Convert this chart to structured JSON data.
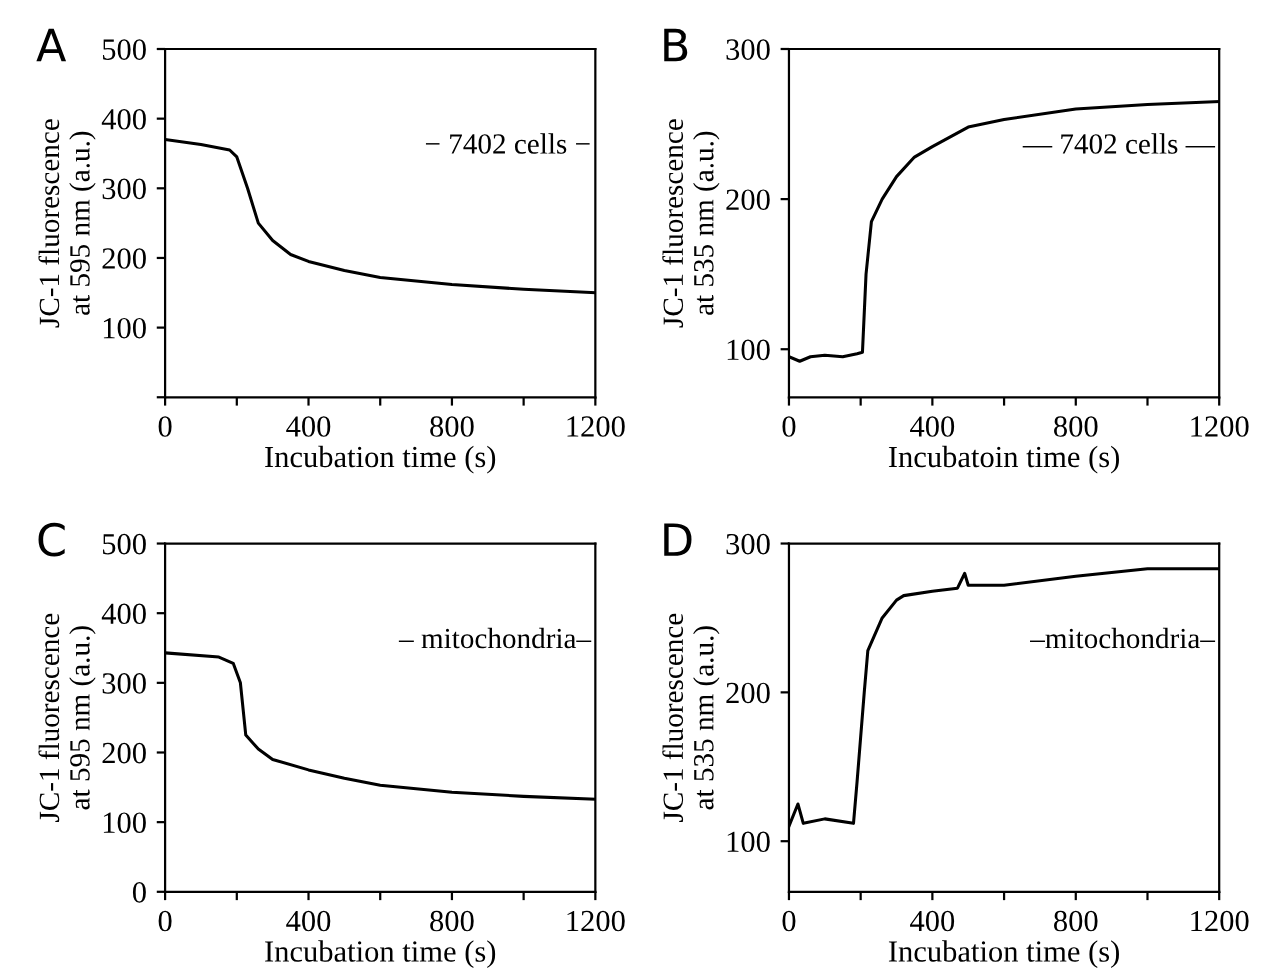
{
  "chart_data": [
    {
      "type": "line",
      "title": "A",
      "xlabel": "Incubation time (s)",
      "ylabel": "JC-1 fluorescence\nat 595 nm (a.u.)",
      "annotations": [
        {
          "text": "− 7402 cells −"
        }
      ],
      "x": [
        0,
        100,
        180,
        200,
        230,
        260,
        300,
        350,
        400,
        500,
        600,
        800,
        1000,
        1200
      ],
      "series": [
        {
          "color": "#000000",
          "values": [
            370,
            363,
            355,
            345,
            300,
            250,
            225,
            205,
            195,
            182,
            172,
            162,
            155,
            150
          ]
        }
      ],
      "xlim": [
        0,
        1200
      ],
      "xticks": [
        0,
        {
          "value": 200,
          "label": null
        },
        400,
        {
          "value": 600,
          "label": null
        },
        800,
        {
          "value": 1000,
          "label": null
        },
        1200
      ],
      "ylim": [
        0,
        500
      ],
      "yticks": [
        {
          "value": 0,
          "label": null
        },
        100,
        200,
        300,
        400,
        500
      ],
      "grid": false,
      "legend": false
    },
    {
      "type": "line",
      "title": "B",
      "xlabel": "Incubatoin time (s)",
      "ylabel": "JC-1 fluorescence\nat 535 nm (a.u.)",
      "annotations": [
        {
          "text": "— 7402 cells —"
        }
      ],
      "x": [
        0,
        30,
        60,
        100,
        150,
        190,
        205,
        215,
        230,
        260,
        300,
        350,
        400,
        500,
        600,
        800,
        1000,
        1200
      ],
      "series": [
        {
          "color": "#000000",
          "values": [
            95,
            92,
            95,
            96,
            95,
            97,
            98,
            150,
            185,
            200,
            215,
            228,
            235,
            248,
            253,
            260,
            263,
            265
          ]
        }
      ],
      "xlim": [
        0,
        1200
      ],
      "xticks": [
        0,
        {
          "value": 200,
          "label": null
        },
        400,
        {
          "value": 600,
          "label": null
        },
        800,
        {
          "value": 1000,
          "label": null
        },
        1200
      ],
      "ylim": [
        68,
        300
      ],
      "yticks": [
        100,
        200,
        300
      ],
      "grid": false,
      "legend": false
    },
    {
      "type": "line",
      "title": "C",
      "xlabel": "Incubation time (s)",
      "ylabel": "JC-1 fluorescence\nat 595 nm (a.u.)",
      "annotations": [
        {
          "text": "– mitochondria–"
        }
      ],
      "x": [
        0,
        150,
        190,
        210,
        225,
        260,
        300,
        400,
        500,
        600,
        800,
        1000,
        1200
      ],
      "series": [
        {
          "color": "#000000",
          "values": [
            343,
            337,
            328,
            300,
            225,
            205,
            190,
            175,
            163,
            153,
            143,
            137,
            133
          ]
        }
      ],
      "xlim": [
        0,
        1200
      ],
      "xticks": [
        0,
        {
          "value": 200,
          "label": null
        },
        400,
        {
          "value": 600,
          "label": null
        },
        800,
        {
          "value": 1000,
          "label": null
        },
        1200
      ],
      "ylim": [
        0,
        500
      ],
      "yticks": [
        0,
        100,
        200,
        300,
        400,
        500
      ],
      "grid": false,
      "legend": false
    },
    {
      "type": "line",
      "title": "D",
      "xlabel": "Incubation time (s)",
      "ylabel": "JC-1 fluorescence\nat 535 nm (a.u.)",
      "annotations": [
        {
          "text": "–mitochondria–"
        }
      ],
      "x": [
        0,
        25,
        40,
        100,
        180,
        190,
        210,
        220,
        260,
        300,
        320,
        400,
        470,
        490,
        500,
        600,
        800,
        1000,
        1200
      ],
      "series": [
        {
          "color": "#000000",
          "values": [
            110,
            125,
            112,
            115,
            112,
            140,
            200,
            228,
            250,
            262,
            265,
            268,
            270,
            280,
            272,
            272,
            278,
            283,
            283
          ]
        }
      ],
      "xlim": [
        0,
        1200
      ],
      "xticks": [
        0,
        {
          "value": 200,
          "label": null
        },
        400,
        {
          "value": 600,
          "label": null
        },
        800,
        {
          "value": 1000,
          "label": null
        },
        1200
      ],
      "ylim": [
        66,
        300
      ],
      "yticks": [
        100,
        200,
        300
      ],
      "grid": false,
      "legend": false
    }
  ]
}
